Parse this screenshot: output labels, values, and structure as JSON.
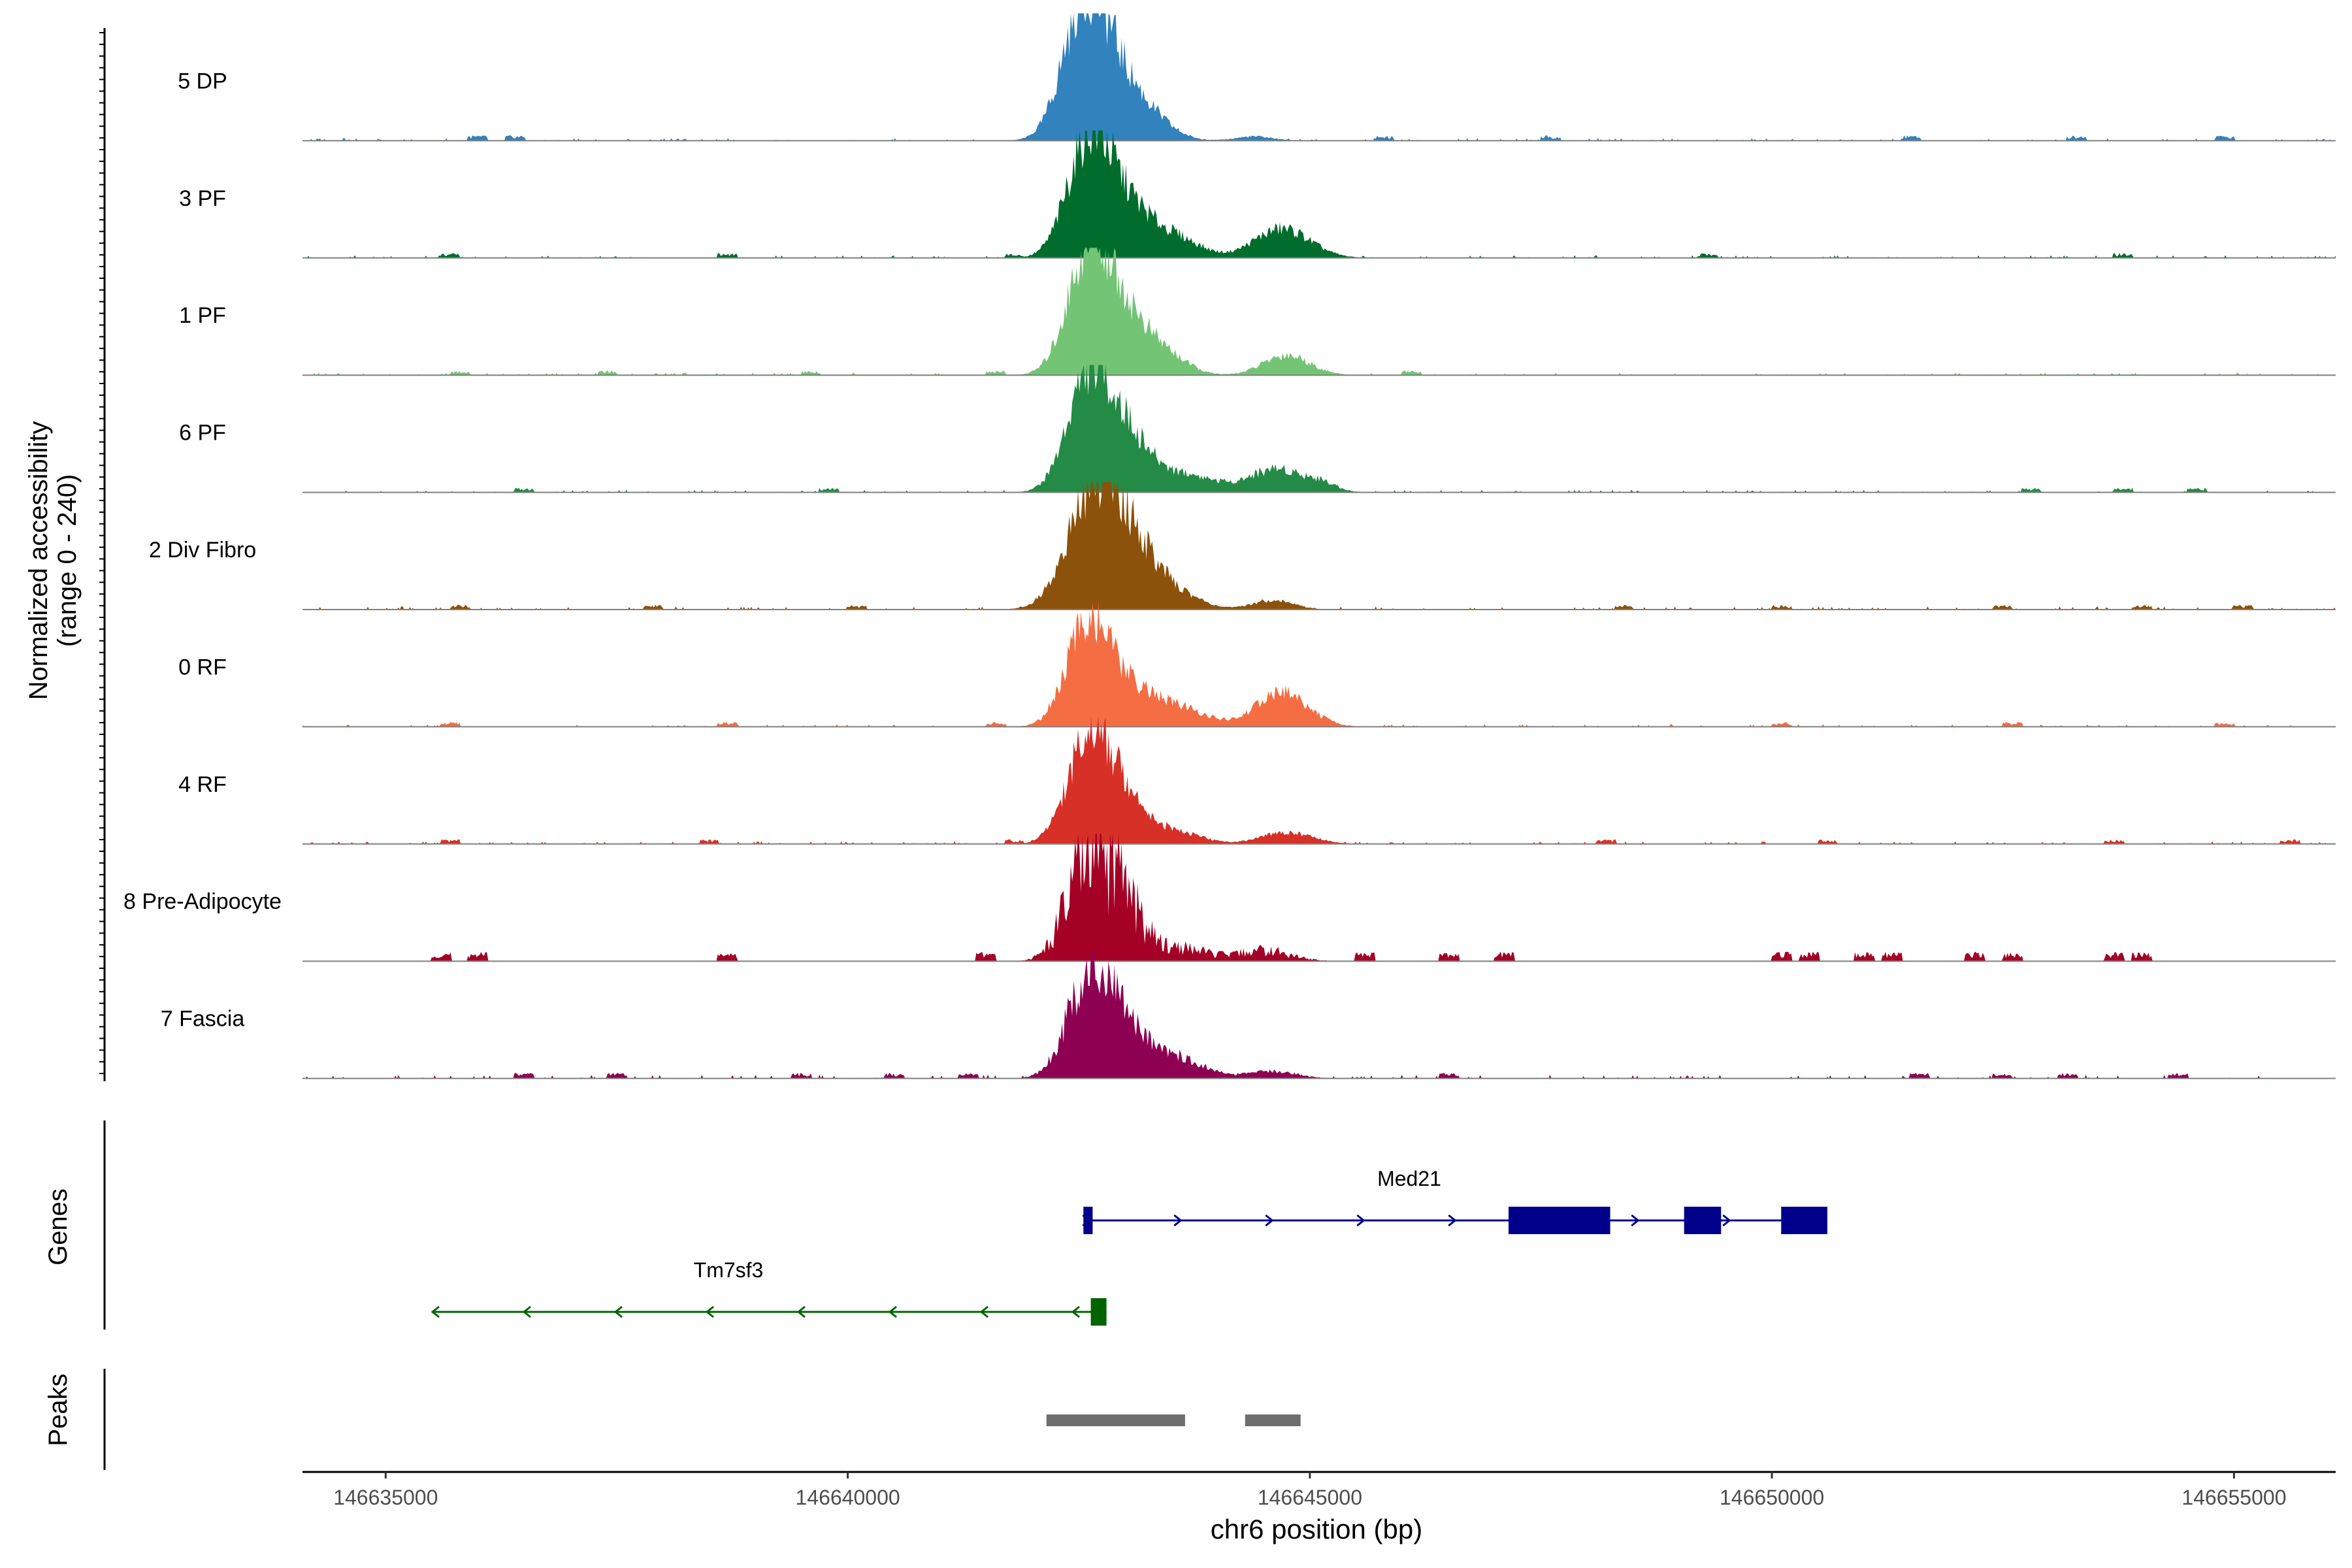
{
  "chart_data": {
    "type": "area",
    "title": "",
    "region": "chr6",
    "xlabel": "chr6 position (bp)",
    "ylabel_line1": "Normalized accessibility",
    "ylabel_line2": "(range 0 - 240)",
    "y_range": [
      0,
      240
    ],
    "xlim": [
      146634100,
      146656100
    ],
    "x_ticks": [
      146635000,
      146640000,
      146645000,
      146650000,
      146655000
    ],
    "x_tick_labels": [
      "146635000",
      "146640000",
      "146645000",
      "146650000",
      "146655000"
    ],
    "tracks": [
      {
        "name": "5 DP",
        "color": "#3182BD",
        "peaks": [
          [
            146642550,
            210,
            230
          ],
          [
            146642850,
            120,
            300
          ],
          [
            146643300,
            25,
            250
          ],
          [
            146644400,
            8,
            200
          ]
        ],
        "baseline": 5,
        "speckles": [
          146636000,
          146636400,
          146645800,
          146647600,
          146651500,
          146653300,
          146654900
        ],
        "speck_height": 7,
        "noise": 0.25
      },
      {
        "name": "3 PF",
        "color": "#006D2C",
        "peaks": [
          [
            146642600,
            200,
            230
          ],
          [
            146643000,
            100,
            300
          ],
          [
            146643600,
            30,
            250
          ],
          [
            146644700,
            55,
            300
          ]
        ],
        "baseline": 5,
        "speckles": [
          146635700,
          146638700,
          146641800,
          146649300,
          146653800
        ],
        "speck_height": 6,
        "noise": 0.25
      },
      {
        "name": "1 PF",
        "color": "#74C476",
        "peaks": [
          [
            146642600,
            210,
            230
          ],
          [
            146643000,
            110,
            280
          ],
          [
            146643500,
            25,
            220
          ],
          [
            146644750,
            38,
            250
          ]
        ],
        "baseline": 5,
        "speckles": [
          146635800,
          146637400,
          146639600,
          146641600,
          146646100
        ],
        "speck_height": 6,
        "noise": 0.25
      },
      {
        "name": "6 PF",
        "color": "#238B45",
        "peaks": [
          [
            146642600,
            200,
            230
          ],
          [
            146643000,
            105,
            280
          ],
          [
            146643700,
            30,
            300
          ],
          [
            146644650,
            45,
            300
          ],
          [
            146645150,
            12,
            150
          ]
        ],
        "baseline": 5,
        "speckles": [
          146636500,
          146639800,
          146652800,
          146653800,
          146654600
        ],
        "speck_height": 6,
        "noise": 0.25
      },
      {
        "name": "2 Div Fibro",
        "color": "#8C510A",
        "peaks": [
          [
            146642650,
            205,
            280
          ],
          [
            146643100,
            110,
            300
          ],
          [
            146643700,
            15,
            220
          ],
          [
            146644600,
            18,
            220
          ]
        ],
        "baseline": 6,
        "speckles": [
          146635800,
          146637900,
          146640100,
          146648400,
          146650100,
          146652500,
          146654000,
          146655100
        ],
        "speck_height": 6,
        "noise": 0.25
      },
      {
        "name": "0 RF",
        "color": "#F46D43",
        "peaks": [
          [
            146642600,
            190,
            230
          ],
          [
            146643100,
            70,
            300
          ],
          [
            146643700,
            25,
            250
          ],
          [
            146644700,
            65,
            280
          ]
        ],
        "baseline": 5,
        "speckles": [
          146635700,
          146638700,
          146641600,
          146650100,
          146652600,
          146654900
        ],
        "speck_height": 6,
        "noise": 0.25
      },
      {
        "name": "4 RF",
        "color": "#D73027",
        "peaks": [
          [
            146642600,
            190,
            230
          ],
          [
            146643000,
            85,
            250
          ],
          [
            146643600,
            20,
            250
          ],
          [
            146644750,
            22,
            280
          ]
        ],
        "baseline": 5,
        "speckles": [
          146635700,
          146638500,
          146641800,
          146648200,
          146650600,
          146653700,
          146655600
        ],
        "speck_height": 6,
        "noise": 0.25
      },
      {
        "name": "8 Pre-Adipocyte",
        "color": "#A50026",
        "peaks": [
          [
            146642600,
            185,
            230
          ],
          [
            146643000,
            100,
            200
          ],
          [
            146643600,
            25,
            280
          ],
          [
            146644500,
            20,
            280
          ]
        ],
        "baseline": 0,
        "speckles": [
          146635600,
          146636000,
          146638700,
          146641500,
          146645600,
          146646500,
          146647100,
          146650100,
          146650400,
          146651000,
          146651300,
          146652200,
          146652600,
          146653700,
          146654000
        ],
        "speck_height": 12,
        "noise": 0.55
      },
      {
        "name": "7 Fascia",
        "color": "#8E0152",
        "peaks": [
          [
            146642600,
            170,
            230
          ],
          [
            146643000,
            90,
            300
          ],
          [
            146643600,
            30,
            300
          ],
          [
            146644600,
            14,
            250
          ]
        ],
        "baseline": 7,
        "speckles": [
          146636500,
          146637500,
          146639500,
          146640500,
          146641300,
          146646500,
          146651600,
          146652500,
          146653200,
          146654400
        ],
        "speck_height": 7,
        "noise": 0.3
      }
    ],
    "genes_label": "Genes",
    "genes": [
      {
        "name": "Med21",
        "strand": "+",
        "start": 146642550,
        "end": 146650600,
        "color": "#00008B",
        "exons": [
          [
            146642550,
            146642650
          ],
          [
            146647150,
            146648250
          ],
          [
            146649050,
            146649450
          ],
          [
            146650100,
            146650600
          ]
        ]
      },
      {
        "name": "Tm7sf3",
        "strand": "-",
        "start": 146635500,
        "end": 146642800,
        "color": "#006400",
        "exons": [
          [
            146642630,
            146642800
          ]
        ]
      }
    ],
    "peaks_label": "Peaks",
    "peak_regions": [
      [
        146642150,
        146643650
      ],
      [
        146644300,
        146644900
      ]
    ]
  }
}
